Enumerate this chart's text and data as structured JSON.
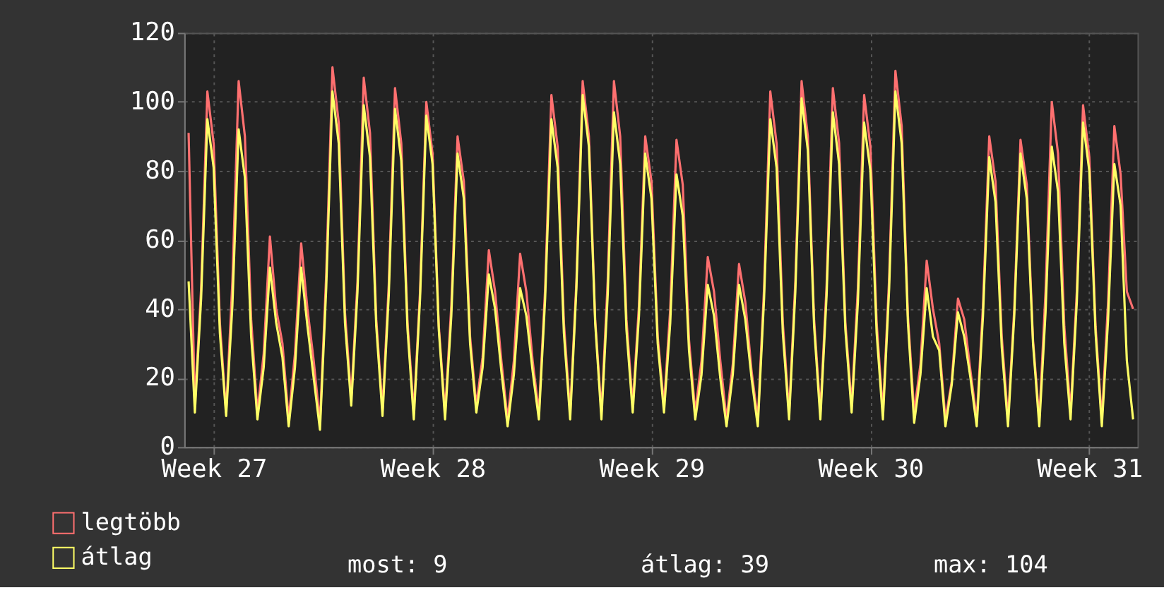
{
  "chart_data": {
    "type": "line",
    "categories": [
      null,
      null,
      null,
      null,
      "Week 27",
      null,
      null,
      null,
      null,
      null,
      null,
      null,
      null,
      null,
      null,
      null,
      null,
      null,
      null,
      null,
      null,
      null,
      null,
      null,
      null,
      null,
      null,
      null,
      null,
      null,
      null,
      null,
      null,
      null,
      null,
      null,
      null,
      null,
      null,
      "Week 28",
      null,
      null,
      null,
      null,
      null,
      null,
      null,
      null,
      null,
      null,
      null,
      null,
      null,
      null,
      null,
      null,
      null,
      null,
      null,
      null,
      null,
      null,
      null,
      null,
      null,
      null,
      null,
      null,
      null,
      null,
      null,
      null,
      null,
      null,
      "Week 29",
      null,
      null,
      null,
      null,
      null,
      null,
      null,
      null,
      null,
      null,
      null,
      null,
      null,
      null,
      null,
      null,
      null,
      null,
      null,
      null,
      null,
      null,
      null,
      null,
      null,
      null,
      null,
      null,
      null,
      null,
      null,
      null,
      null,
      null,
      "Week 30",
      null,
      null,
      null,
      null,
      null,
      null,
      null,
      null,
      null,
      null,
      null,
      null,
      null,
      null,
      null,
      null,
      null,
      null,
      null,
      null,
      null,
      null,
      null,
      null,
      null,
      null,
      null,
      null,
      null,
      null,
      null,
      null,
      null,
      null,
      "Week 31",
      null,
      null,
      null,
      null,
      null,
      null,
      null
    ],
    "series": [
      {
        "name": "legtöbb",
        "color": "#ff7070",
        "values": [
          91,
          12,
          46,
          103,
          88,
          36,
          10,
          48,
          106,
          90,
          37,
          10,
          27,
          61,
          40,
          30,
          8,
          27,
          59,
          40,
          25,
          7,
          50,
          110,
          94,
          39,
          14,
          48,
          107,
          91,
          37,
          11,
          47,
          104,
          88,
          36,
          10,
          45,
          100,
          85,
          35,
          10,
          41,
          90,
          77,
          32,
          12,
          26,
          57,
          45,
          25,
          8,
          25,
          56,
          45,
          25,
          10,
          46,
          102,
          87,
          36,
          10,
          48,
          106,
          90,
          37,
          10,
          48,
          106,
          90,
          37,
          12,
          41,
          90,
          77,
          32,
          12,
          40,
          89,
          76,
          31,
          10,
          25,
          55,
          45,
          25,
          8,
          24,
          53,
          42,
          22,
          8,
          46,
          103,
          88,
          36,
          10,
          48,
          106,
          90,
          37,
          10,
          47,
          104,
          88,
          36,
          12,
          46,
          102,
          87,
          36,
          10,
          49,
          109,
          93,
          38,
          10,
          24,
          54,
          40,
          30,
          8,
          19,
          43,
          37,
          22,
          8,
          41,
          90,
          77,
          32,
          8,
          40,
          89,
          76,
          31,
          8,
          45,
          100,
          85,
          35,
          10,
          45,
          99,
          84,
          35,
          8,
          42,
          93,
          79,
          45,
          40
        ]
      },
      {
        "name": "átlag",
        "color": "#ffff66",
        "values": [
          48,
          10,
          43,
          95,
          81,
          33,
          9,
          41,
          92,
          78,
          32,
          8,
          23,
          52,
          36,
          26,
          6,
          23,
          52,
          35,
          20,
          5,
          46,
          103,
          88,
          36,
          12,
          45,
          99,
          84,
          35,
          9,
          44,
          98,
          83,
          34,
          8,
          43,
          96,
          82,
          34,
          8,
          38,
          85,
          72,
          30,
          10,
          23,
          50,
          40,
          22,
          6,
          21,
          46,
          38,
          22,
          8,
          43,
          95,
          81,
          33,
          8,
          46,
          102,
          87,
          36,
          8,
          44,
          97,
          82,
          34,
          10,
          38,
          85,
          72,
          30,
          10,
          36,
          79,
          67,
          28,
          8,
          21,
          47,
          38,
          20,
          6,
          21,
          47,
          37,
          20,
          6,
          43,
          95,
          81,
          33,
          8,
          45,
          101,
          86,
          35,
          8,
          44,
          97,
          82,
          34,
          10,
          42,
          94,
          80,
          33,
          8,
          46,
          103,
          88,
          36,
          7,
          21,
          46,
          32,
          28,
          6,
          18,
          39,
          32,
          20,
          6,
          38,
          84,
          71,
          29,
          6,
          38,
          85,
          72,
          30,
          6,
          39,
          87,
          74,
          30,
          8,
          42,
          94,
          80,
          33,
          6,
          37,
          82,
          70,
          25,
          8
        ]
      }
    ],
    "ylim": [
      0,
      120
    ],
    "yticks": [
      0,
      20,
      40,
      60,
      80,
      100,
      120
    ],
    "grid": true,
    "legend": "bottom left",
    "line_style": "solid",
    "marker": "none",
    "annotations": [
      "most: 9",
      "átlag: 39",
      "max: 104"
    ]
  }
}
